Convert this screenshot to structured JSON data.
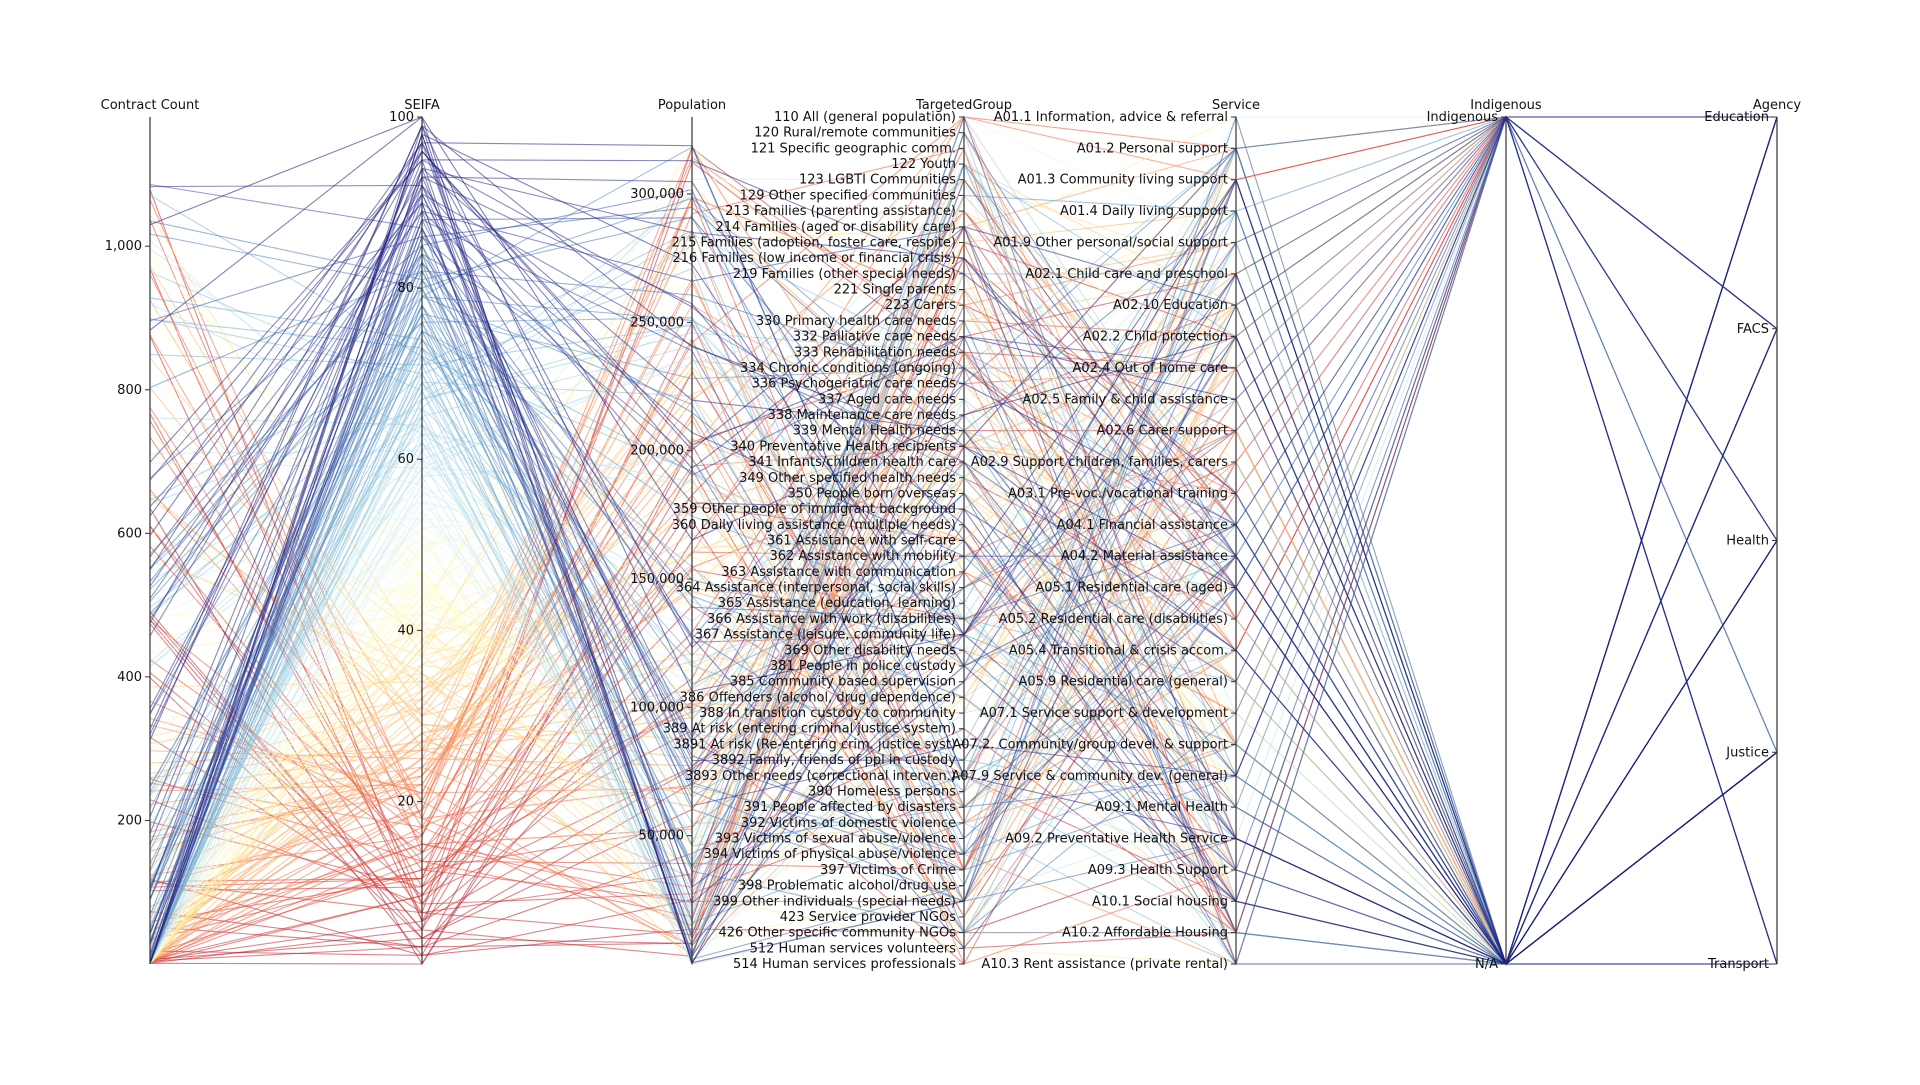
{
  "chart_data": {
    "type": "parallel-coordinates",
    "title": "",
    "axes": [
      {
        "name": "Contract Count",
        "kind": "numeric",
        "range": [
          0,
          1180
        ],
        "ticks": [
          200,
          400,
          600,
          800,
          1000
        ]
      },
      {
        "name": "SEIFA",
        "kind": "numeric",
        "range": [
          1,
          100
        ],
        "ticks": [
          20,
          40,
          60,
          80,
          100
        ]
      },
      {
        "name": "Population",
        "kind": "numeric",
        "range": [
          0,
          330000
        ],
        "ticks": [
          50000,
          100000,
          150000,
          200000,
          250000,
          300000
        ]
      },
      {
        "name": "TargetedGroup",
        "kind": "categorical",
        "categories": [
          "110 All (general population)",
          "120 Rural/remote communities",
          "121 Specific geographic comm.",
          "122 Youth",
          "123 LGBTI Communities",
          "129 Other specified communities",
          "213 Families (parenting assistance)",
          "214 Families (aged or disability care)",
          "215 Families (adoption, foster care, respite)",
          "216 Families (low income or financial crisis)",
          "219 Families (other special needs)",
          "221 Single parents",
          "223 Carers",
          "330 Primary health care needs",
          "332 Palliative care needs",
          "333 Rehabilitation needs",
          "334 Chronic conditions (ongoing)",
          "336 Psychogeriatric care needs",
          "337 Aged care needs",
          "338 Maintenance care needs",
          "339 Mental Health needs",
          "340 Preventative Health recipients",
          "341 Infants/children health care",
          "349 Other specified health needs",
          "350 People born overseas",
          "359 Other people of immigrant background",
          "360 Daily living assistance (multiple needs)",
          "361 Assistance with self-care",
          "362 Assistance with mobility",
          "363 Assistance with communication",
          "364 Assistance (interpersonal, social skills)",
          "365 Assistance (education, learning)",
          "366 Assistance with work (disabilities)",
          "367 Assistance (leisure, community life)",
          "369 Other disability needs",
          "381 People in police custody",
          "385 Community based supervision",
          "386 Offenders (alcohol, drug dependence)",
          "388 In transition custody to community",
          "389 At risk (entering criminal justice system)",
          "3891 At risk (Re-entering crim. justice syst)",
          "3892 Family, friends of ppl in custody",
          "3893 Other needs (correctional interven.)",
          "390 Homeless persons",
          "391 People affected by disasters",
          "392 Victims of domestic violence",
          "393 Victims of sexual abuse/violence",
          "394 Victims of physical abuse/violence",
          "397 Victims of Crime",
          "398 Problematic alcohol/drug use",
          "399 Other individuals (special needs)",
          "423 Service provider NGOs",
          "426 Other specific community NGOs",
          "512 Human services volunteers",
          "514 Human services professionals"
        ]
      },
      {
        "name": "Service",
        "kind": "categorical",
        "categories": [
          "A01.1 Information, advice & referral",
          "A01.2 Personal support",
          "A01.3 Community living support",
          "A01.4 Daily living support",
          "A01.9 Other personal/social support",
          "A02.1 Child care and preschool",
          "A02.10 Education",
          "A02.2 Child protection",
          "A02.4 Out of home care",
          "A02.5 Family & child assistance",
          "A02.6 Carer support",
          "A02.9 Support children, families, carers",
          "A03.1 Pre-voc./vocational training",
          "A04.1 Financial assistance",
          "A04.2 Material assistance",
          "A05.1 Residential care (aged)",
          "A05.2 Residential care (disabilities)",
          "A05.4 Transitional & crisis accom.",
          "A05.9 Residential care (general)",
          "A07.1 Service support & development",
          "A07.2. Community/group devel. & support",
          "A07.9 Service & community dev. (general)",
          "A09.1 Mental Health",
          "A09.2 Preventative Health Service",
          "A09.3 Health Support",
          "A10.1 Social housing",
          "A10.2 Affordable Housing",
          "A10.3 Rent assistance (private rental)"
        ]
      },
      {
        "name": "Indigenous",
        "kind": "categorical",
        "categories": [
          "Indigenous",
          "N/A"
        ]
      },
      {
        "name": "Agency",
        "kind": "categorical",
        "categories": [
          "Education",
          "FACS",
          "Health",
          "Justice",
          "Transport"
        ]
      }
    ],
    "color_scale": {
      "by": "SEIFA",
      "colors": [
        "#b2182b",
        "#d73027",
        "#f46d43",
        "#fdae61",
        "#fee090",
        "#ffffbf",
        "#e0f3f8",
        "#abd9e9",
        "#74add1",
        "#4575b4",
        "#313695",
        "#1a1a7a"
      ]
    },
    "records_count": 300,
    "legend": "none",
    "grid": false
  }
}
